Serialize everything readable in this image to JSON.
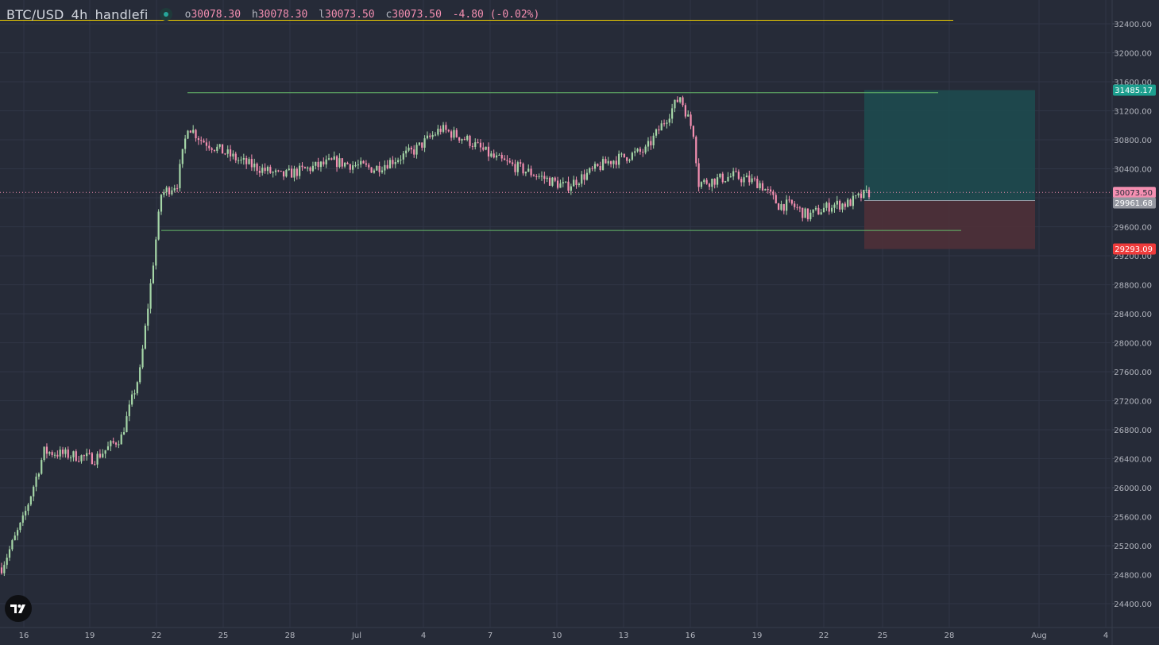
{
  "legend": {
    "symbol": "BTC/USD",
    "interval": "4h",
    "author": "handlefi",
    "open_key": "o",
    "open": "30078.30",
    "high_key": "h",
    "high": "30078.30",
    "low_key": "l",
    "low": "30073.50",
    "close_key": "c",
    "close": "30073.50",
    "change": "-4.80 (-0.02%)"
  },
  "colors": {
    "background": "#262b38",
    "grid": "#303646",
    "up": "#a5d6a7",
    "down": "#f48fb1",
    "range_line": "#66bb6a",
    "top_line": "#f0d000",
    "profit_zone": "#1e4a4f",
    "loss_zone": "#4f3038",
    "axis_text": "#b2b5be"
  },
  "chart_data": {
    "type": "candlestick",
    "ylim": [
      24000,
      32600
    ],
    "y_ticks": [
      "24400.00",
      "24800.00",
      "25200.00",
      "25600.00",
      "26000.00",
      "26400.00",
      "26800.00",
      "27200.00",
      "27600.00",
      "28000.00",
      "28400.00",
      "28800.00",
      "29200.00",
      "29600.00",
      "30000.00",
      "30400.00",
      "30800.00",
      "31200.00",
      "31600.00",
      "32000.00",
      "32400.00"
    ],
    "x_ticks": [
      "16",
      "19",
      "22",
      "25",
      "28",
      "Jul",
      "4",
      "7",
      "10",
      "13",
      "16",
      "19",
      "22",
      "25",
      "28",
      "Aug",
      "4"
    ],
    "price_labels": {
      "current": "30073.50",
      "entry": "29961.68",
      "take_profit": "31485.17",
      "stop_loss": "29293.09"
    },
    "range_levels": {
      "resistance": 31450,
      "support": 29550
    },
    "top_line_level": 32450,
    "key_points": [
      [
        0,
        24900
      ],
      [
        8,
        25550
      ],
      [
        16,
        26500
      ],
      [
        35,
        26400
      ],
      [
        45,
        26700
      ],
      [
        52,
        27600
      ],
      [
        56,
        28800
      ],
      [
        60,
        30050
      ],
      [
        66,
        30200
      ],
      [
        70,
        31000
      ],
      [
        75,
        30800
      ],
      [
        90,
        30500
      ],
      [
        105,
        30300
      ],
      [
        125,
        30500
      ],
      [
        140,
        30400
      ],
      [
        155,
        30650
      ],
      [
        165,
        30950
      ],
      [
        175,
        30800
      ],
      [
        185,
        30550
      ],
      [
        195,
        30400
      ],
      [
        212,
        30150
      ],
      [
        228,
        30500
      ],
      [
        242,
        30650
      ],
      [
        255,
        31400
      ],
      [
        260,
        30900
      ],
      [
        262,
        30200
      ],
      [
        275,
        30300
      ],
      [
        285,
        30200
      ],
      [
        292,
        29900
      ],
      [
        297,
        29900
      ],
      [
        303,
        29750
      ],
      [
        312,
        29900
      ],
      [
        318,
        29920
      ],
      [
        323,
        30020
      ],
      [
        326,
        30070
      ]
    ]
  }
}
